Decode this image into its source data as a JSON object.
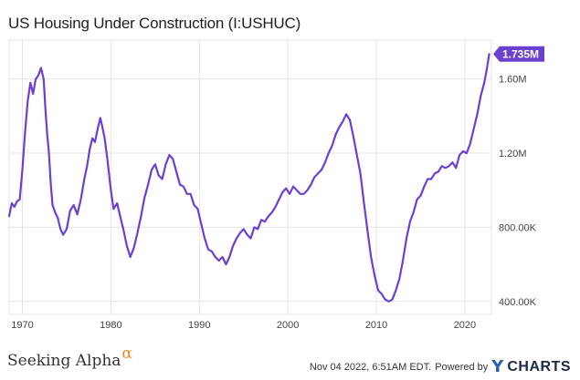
{
  "title": "US Housing Under Construction (I:USHUC)",
  "footer": {
    "brand": "Seeking Alpha",
    "brand_alpha": "α",
    "timestamp": "Nov 04 2022, 6:51AM EDT.",
    "powered_by": "Powered by",
    "ycharts_y": "Y",
    "ycharts_word": "CHARTS"
  },
  "colors": {
    "line": "#6b3fcf",
    "grid": "#e4e4e4",
    "axis_text": "#444444"
  },
  "chart_data": {
    "type": "line",
    "title": "US Housing Under Construction (I:USHUC)",
    "xlabel": "",
    "ylabel": "",
    "xlim": [
      1968.5,
      2023
    ],
    "ylim": [
      330000,
      1810000
    ],
    "grid": true,
    "x_ticks": [
      1970,
      1980,
      1990,
      2000,
      2010,
      2020
    ],
    "x_tick_labels": [
      "1970",
      "1980",
      "1990",
      "2000",
      "2010",
      "2020"
    ],
    "y_ticks": [
      400000,
      800000,
      1200000,
      1600000
    ],
    "y_tick_labels": [
      "400.00K",
      "800.00K",
      "1.20M",
      "1.60M"
    ],
    "last_value_label": "1.735M",
    "series": [
      {
        "x": [
          1968.5,
          1968.8,
          1969.1,
          1969.4,
          1969.7,
          1970.0,
          1970.3,
          1970.6,
          1970.9,
          1971.2,
          1971.5,
          1971.8,
          1972.1,
          1972.4,
          1972.6,
          1972.8,
          1973.0,
          1973.2,
          1973.4,
          1973.7,
          1974.0,
          1974.3,
          1974.6,
          1975.0,
          1975.4,
          1975.8,
          1976.2,
          1976.6,
          1977.0,
          1977.3,
          1977.6,
          1977.9,
          1978.2,
          1978.5,
          1978.8,
          1979.0,
          1979.3,
          1979.6,
          1980.0,
          1980.3,
          1980.7,
          1981.0,
          1981.4,
          1981.8,
          1982.2,
          1982.6,
          1983.0,
          1983.4,
          1983.8,
          1984.2,
          1984.6,
          1985.0,
          1985.4,
          1985.8,
          1986.2,
          1986.6,
          1987.0,
          1987.4,
          1987.8,
          1988.2,
          1988.6,
          1989.0,
          1989.4,
          1989.8,
          1990.2,
          1990.6,
          1991.0,
          1991.4,
          1991.8,
          1992.2,
          1992.6,
          1993.0,
          1993.4,
          1993.8,
          1994.2,
          1994.6,
          1995.0,
          1995.4,
          1995.8,
          1996.2,
          1996.6,
          1997.0,
          1997.4,
          1997.8,
          1998.2,
          1998.6,
          1999.0,
          1999.4,
          1999.8,
          2000.2,
          2000.6,
          2001.0,
          2001.4,
          2001.8,
          2002.2,
          2002.6,
          2003.0,
          2003.4,
          2003.8,
          2004.2,
          2004.6,
          2005.0,
          2005.4,
          2005.8,
          2006.2,
          2006.6,
          2007.0,
          2007.4,
          2007.8,
          2008.2,
          2008.6,
          2009.0,
          2009.4,
          2009.8,
          2010.2,
          2010.6,
          2011.0,
          2011.4,
          2011.8,
          2012.2,
          2012.6,
          2013.0,
          2013.4,
          2013.8,
          2014.2,
          2014.6,
          2015.0,
          2015.4,
          2015.8,
          2016.2,
          2016.6,
          2017.0,
          2017.4,
          2017.8,
          2018.2,
          2018.6,
          2019.0,
          2019.4,
          2019.8,
          2020.2,
          2020.6,
          2021.0,
          2021.4,
          2021.8,
          2022.2,
          2022.5,
          2022.75
        ],
        "y": [
          860000,
          930000,
          910000,
          940000,
          950000,
          1110000,
          1310000,
          1480000,
          1580000,
          1520000,
          1600000,
          1620000,
          1660000,
          1600000,
          1440000,
          1300000,
          1200000,
          1040000,
          920000,
          880000,
          850000,
          790000,
          760000,
          790000,
          890000,
          920000,
          870000,
          950000,
          1060000,
          1130000,
          1220000,
          1280000,
          1260000,
          1330000,
          1390000,
          1350000,
          1280000,
          1170000,
          1000000,
          900000,
          930000,
          870000,
          790000,
          700000,
          640000,
          690000,
          770000,
          860000,
          960000,
          1030000,
          1110000,
          1140000,
          1080000,
          1060000,
          1140000,
          1190000,
          1170000,
          1100000,
          1030000,
          1020000,
          980000,
          980000,
          920000,
          900000,
          820000,
          740000,
          680000,
          670000,
          640000,
          620000,
          640000,
          600000,
          640000,
          700000,
          740000,
          770000,
          790000,
          760000,
          740000,
          800000,
          790000,
          840000,
          830000,
          860000,
          880000,
          910000,
          950000,
          990000,
          1010000,
          980000,
          1020000,
          1000000,
          980000,
          980000,
          1000000,
          1030000,
          1070000,
          1090000,
          1110000,
          1150000,
          1200000,
          1240000,
          1300000,
          1340000,
          1370000,
          1410000,
          1380000,
          1290000,
          1190000,
          1090000,
          930000,
          780000,
          640000,
          540000,
          460000,
          440000,
          410000,
          400000,
          410000,
          460000,
          520000,
          620000,
          740000,
          830000,
          880000,
          950000,
          970000,
          1020000,
          1060000,
          1060000,
          1090000,
          1100000,
          1130000,
          1120000,
          1130000,
          1150000,
          1120000,
          1190000,
          1210000,
          1200000,
          1250000,
          1330000,
          1410000,
          1510000,
          1580000,
          1660000,
          1735000
        ]
      }
    ]
  }
}
